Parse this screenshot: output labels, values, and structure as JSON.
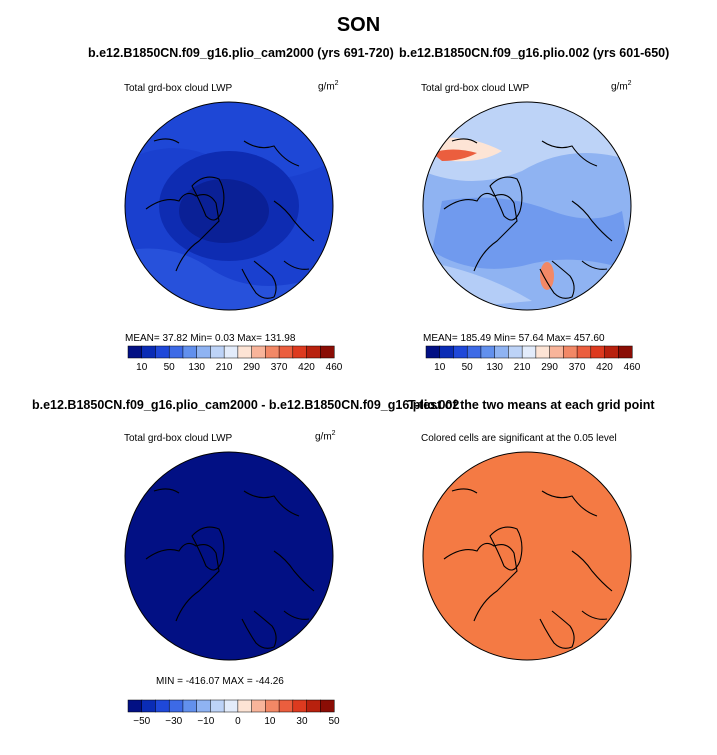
{
  "figure": {
    "title": "SON"
  },
  "panels": [
    {
      "title": "b.e12.B1850CN.f09_g16.plio_cam2000 (yrs 691-720)",
      "variable": "Total grd-box cloud LWP",
      "units": "g/m",
      "units_exp": "2",
      "stats": "MEAN=   37.82   Min=     0.03   Max= 131.98"
    },
    {
      "title": "b.e12.B1850CN.f09_g16.plio.002 (yrs 601-650)",
      "variable": "Total grd-box cloud LWP",
      "units": "g/m",
      "units_exp": "2",
      "stats": "MEAN= 185.49   Min=   57.64   Max= 457.60"
    },
    {
      "title": "b.e12.B1850CN.f09_g16.plio_cam2000 - b.e12.B1850CN.f09_g16.plio.002",
      "variable": "Total grd-box cloud LWP",
      "units": "g/m",
      "units_exp": "2",
      "stats": "MIN = -416.07 MAX = -44.26"
    },
    {
      "title": "T-test of the two means at each grid point",
      "variable": "Colored cells are significant at the 0.05 level"
    }
  ],
  "colorbars": {
    "top_left": {
      "labels": [
        "10",
        "50",
        "130",
        "210",
        "290",
        "370",
        "420",
        "460"
      ]
    },
    "top_right": {
      "labels": [
        "10",
        "50",
        "130",
        "210",
        "290",
        "370",
        "420",
        "460"
      ]
    },
    "bottom": {
      "labels": [
        "−50",
        "−30",
        "−10",
        "0",
        "10",
        "30",
        "50"
      ]
    }
  },
  "colors": {
    "scale": [
      "#021084",
      "#0a2cb5",
      "#1f48d9",
      "#3d6ae6",
      "#6290ed",
      "#8fb3f2",
      "#bdd3f7",
      "#e3ecfb",
      "#fde4d5",
      "#f8b49a",
      "#f28866",
      "#eb5e3e",
      "#dd3a1f",
      "#b8210e",
      "#8a0d05"
    ],
    "ttest_fill": "#f47a44",
    "coast": "#000000"
  },
  "chart_data": [
    {
      "type": "heatmap",
      "title": "b.e12.B1850CN.f09_g16.plio_cam2000 (yrs 691-720)",
      "variable": "Total grd-box cloud LWP",
      "units": "g/m2",
      "mean": 37.82,
      "min": 0.03,
      "max": 131.98,
      "levels": [
        10,
        50,
        130,
        210,
        290,
        370,
        420,
        460
      ]
    },
    {
      "type": "heatmap",
      "title": "b.e12.B1850CN.f09_g16.plio.002 (yrs 601-650)",
      "variable": "Total grd-box cloud LWP",
      "units": "g/m2",
      "mean": 185.49,
      "min": 57.64,
      "max": 457.6,
      "levels": [
        10,
        50,
        130,
        210,
        290,
        370,
        420,
        460
      ]
    },
    {
      "type": "heatmap",
      "title": "b.e12.B1850CN.f09_g16.plio_cam2000 - b.e12.B1850CN.f09_g16.plio.002",
      "variable": "Total grd-box cloud LWP",
      "units": "g/m2",
      "min": -416.07,
      "max": -44.26,
      "levels": [
        -50,
        -30,
        -10,
        0,
        10,
        30,
        50
      ]
    },
    {
      "type": "heatmap",
      "title": "T-test of the two means at each grid point",
      "variable": "Colored cells are significant at the 0.05 level",
      "significance_level": 0.05
    }
  ]
}
